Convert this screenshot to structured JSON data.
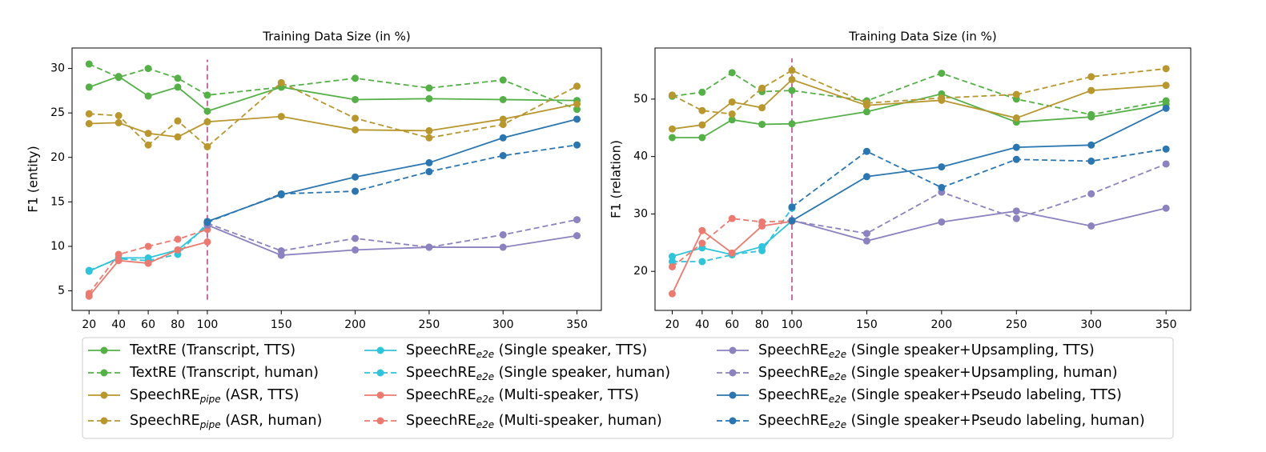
{
  "chart_data": [
    {
      "type": "line",
      "title": "Training Data Size (in %)",
      "y_label": "F1 (entity)",
      "x": [
        20,
        40,
        60,
        80,
        100,
        150,
        200,
        250,
        300,
        350
      ],
      "xlim": [
        8.5,
        366.5
      ],
      "xticks": [
        20,
        40,
        60,
        80,
        100,
        150,
        200,
        250,
        300,
        350
      ],
      "ylim": [
        2.8,
        32.3
      ],
      "yticks": [
        5,
        10,
        15,
        20,
        25,
        30
      ],
      "vline": {
        "x": 100,
        "y": [
          4,
          31
        ],
        "color": "#c0609f"
      },
      "series": [
        {
          "name": {
            "base": "TextRE (Transcript, TTS)"
          },
          "color": "#55b047",
          "linestyle": "solid",
          "values": [
            27.9,
            29.1,
            26.9,
            27.9,
            25.2,
            27.9,
            26.5,
            26.6,
            26.5,
            26.4
          ]
        },
        {
          "name": {
            "base": "TextRE (Transcript, human)"
          },
          "color": "#55b047",
          "linestyle": "dashed",
          "values": [
            30.5,
            29.0,
            30.0,
            28.9,
            27.0,
            27.9,
            28.9,
            27.8,
            28.7,
            25.4
          ]
        },
        {
          "name": {
            "base": "SpeechRE",
            "sub": "pipe",
            "rest": " (ASR, TTS)"
          },
          "color": "#b8972f",
          "linestyle": "solid",
          "values": [
            23.8,
            23.9,
            22.7,
            22.3,
            24.0,
            24.6,
            23.1,
            23.0,
            24.3,
            26.0
          ]
        },
        {
          "name": {
            "base": "SpeechRE",
            "sub": "pipe",
            "rest": " (ASR, human)"
          },
          "color": "#b8972f",
          "linestyle": "dashed",
          "values": [
            24.9,
            24.7,
            21.4,
            24.1,
            21.2,
            28.4,
            24.4,
            22.2,
            23.7,
            28.0
          ]
        },
        {
          "name": {
            "base": "SpeechRE",
            "sub": "e2e",
            "rest": " (Single speaker, TTS)"
          },
          "color": "#2ec4d9",
          "linestyle": "solid",
          "values": [
            7.2,
            8.7,
            8.7,
            9.6,
            12.3,
            null,
            null,
            null,
            null,
            null
          ]
        },
        {
          "name": {
            "base": "SpeechRE",
            "sub": "e2e",
            "rest": " (Single speaker, human)"
          },
          "color": "#2ec4d9",
          "linestyle": "dashed",
          "values": [
            7.3,
            8.6,
            8.4,
            9.1,
            12.6,
            null,
            null,
            null,
            null,
            null
          ]
        },
        {
          "name": {
            "base": "SpeechRE",
            "sub": "e2e",
            "rest": " (Multi-speaker, TTS)"
          },
          "color": "#eb7b70",
          "linestyle": "solid",
          "values": [
            4.4,
            8.4,
            8.1,
            9.6,
            10.5,
            null,
            null,
            null,
            null,
            null
          ]
        },
        {
          "name": {
            "base": "SpeechRE",
            "sub": "e2e",
            "rest": " (Multi-speaker, human)"
          },
          "color": "#eb7b70",
          "linestyle": "dashed",
          "values": [
            4.7,
            9.1,
            10.0,
            10.8,
            11.9,
            null,
            null,
            null,
            null,
            null
          ]
        },
        {
          "name": {
            "base": "SpeechRE",
            "sub": "e2e",
            "rest": " (Single speaker+Upsampling, TTS)"
          },
          "color": "#8c82bf",
          "linestyle": "solid",
          "values": [
            null,
            null,
            null,
            null,
            12.4,
            9.0,
            9.6,
            9.9,
            9.9,
            11.2
          ]
        },
        {
          "name": {
            "base": "SpeechRE",
            "sub": "e2e",
            "rest": " (Single speaker+Upsampling, human)"
          },
          "color": "#8c82bf",
          "linestyle": "dashed",
          "values": [
            null,
            null,
            null,
            null,
            12.6,
            9.5,
            10.9,
            9.9,
            11.3,
            13.0
          ]
        },
        {
          "name": {
            "base": "SpeechRE",
            "sub": "e2e",
            "rest": " (Single speaker+Pseudo labeling, TTS)"
          },
          "color": "#2b76b0",
          "linestyle": "solid",
          "values": [
            null,
            null,
            null,
            null,
            12.8,
            15.8,
            17.8,
            19.4,
            22.2,
            24.3
          ]
        },
        {
          "name": {
            "base": "SpeechRE",
            "sub": "e2e",
            "rest": " (Single speaker+Pseudo labeling, human)"
          },
          "color": "#2b76b0",
          "linestyle": "dashed",
          "values": [
            null,
            null,
            null,
            null,
            12.7,
            15.9,
            16.2,
            18.4,
            20.2,
            21.4
          ]
        }
      ]
    },
    {
      "type": "line",
      "title": "Training Data Size (in %)",
      "y_label": "F1 (relation)",
      "x": [
        20,
        40,
        60,
        80,
        100,
        150,
        200,
        250,
        300,
        350
      ],
      "xlim": [
        8.5,
        366.5
      ],
      "xticks": [
        20,
        40,
        60,
        80,
        100,
        150,
        200,
        250,
        300,
        350
      ],
      "ylim": [
        13.2,
        58.9
      ],
      "yticks": [
        20,
        30,
        40,
        50
      ],
      "vline": {
        "x": 100,
        "y": [
          15,
          57.1
        ],
        "color": "#c0609f"
      },
      "series": [
        {
          "color": "#55b047",
          "linestyle": "solid",
          "values": [
            43.3,
            43.3,
            46.4,
            45.6,
            45.7,
            47.8,
            50.9,
            46.0,
            46.9,
            49.1
          ]
        },
        {
          "color": "#55b047",
          "linestyle": "dashed",
          "values": [
            50.5,
            51.2,
            54.6,
            51.3,
            51.5,
            49.7,
            54.5,
            50.0,
            47.3,
            49.7
          ]
        },
        {
          "color": "#b8972f",
          "linestyle": "solid",
          "values": [
            44.8,
            45.5,
            49.5,
            48.5,
            53.4,
            48.9,
            49.8,
            46.7,
            51.5,
            52.4
          ]
        },
        {
          "color": "#b8972f",
          "linestyle": "dashed",
          "values": [
            50.7,
            48.0,
            47.4,
            51.9,
            55.0,
            49.3,
            50.2,
            50.8,
            53.9,
            55.3
          ]
        },
        {
          "color": "#2ec4d9",
          "linestyle": "solid",
          "values": [
            22.6,
            24.1,
            22.9,
            24.3,
            28.8,
            null,
            null,
            null,
            null,
            null
          ]
        },
        {
          "color": "#2ec4d9",
          "linestyle": "dashed",
          "values": [
            21.7,
            21.7,
            22.9,
            23.6,
            31.0,
            null,
            null,
            null,
            null,
            null
          ]
        },
        {
          "color": "#eb7b70",
          "linestyle": "solid",
          "values": [
            16.1,
            27.1,
            23.2,
            27.9,
            28.7,
            null,
            null,
            null,
            null,
            null
          ]
        },
        {
          "color": "#eb7b70",
          "linestyle": "dashed",
          "values": [
            20.8,
            24.9,
            29.2,
            28.6,
            28.8,
            null,
            null,
            null,
            null,
            null
          ]
        },
        {
          "color": "#8c82bf",
          "linestyle": "solid",
          "values": [
            null,
            null,
            null,
            null,
            28.9,
            25.3,
            28.6,
            30.5,
            27.9,
            31.0
          ]
        },
        {
          "color": "#8c82bf",
          "linestyle": "dashed",
          "values": [
            null,
            null,
            null,
            null,
            28.8,
            26.6,
            33.8,
            29.2,
            33.5,
            38.7
          ]
        },
        {
          "color": "#2b76b0",
          "linestyle": "solid",
          "values": [
            null,
            null,
            null,
            null,
            28.8,
            36.5,
            38.2,
            41.6,
            42.0,
            48.4
          ]
        },
        {
          "color": "#2b76b0",
          "linestyle": "dashed",
          "values": [
            null,
            null,
            null,
            null,
            31.2,
            40.9,
            34.6,
            39.5,
            39.2,
            41.3
          ]
        }
      ]
    }
  ]
}
